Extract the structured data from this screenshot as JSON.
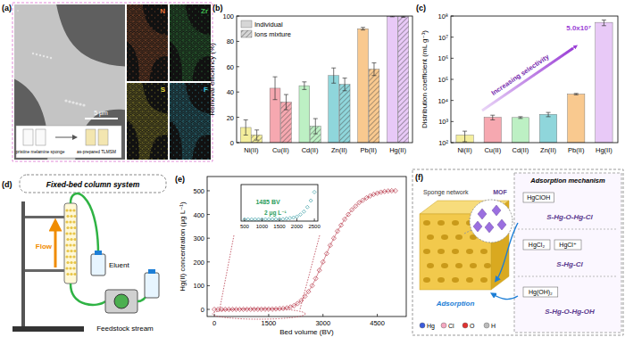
{
  "panel_labels": [
    "(a)",
    "(b)",
    "(c)",
    "(d)",
    "(e)",
    "(f)"
  ],
  "chart_data": [
    {
      "type": "bar",
      "y_label": "Removal efficiency (%)",
      "categories": [
        "Ni(II)",
        "Cu(II)",
        "Cd(II)",
        "Zn(II)",
        "Pb(II)",
        "Hg(II)"
      ],
      "colors": [
        "#f4ee9c",
        "#f6a8b0",
        "#bdf0c4",
        "#8fd6db",
        "#f9c98f",
        "#e8c9f7"
      ],
      "series": [
        {
          "name": "Individual",
          "values": [
            12,
            43,
            45,
            53,
            90,
            99.8
          ],
          "errors": [
            6,
            9,
            3,
            6,
            1,
            0.4
          ]
        },
        {
          "name": "Ions mixture",
          "values": [
            6,
            32,
            13,
            46,
            58,
            99.5
          ],
          "errors": [
            4,
            6,
            6,
            5,
            5,
            0.5
          ],
          "line_style": "hatched"
        }
      ],
      "ylim": [
        0,
        100
      ],
      "yticks": [
        0,
        20,
        40,
        60,
        80,
        100
      ],
      "legend": "upper left"
    },
    {
      "type": "bar",
      "log": "y",
      "y_label": "Distribution coefficient (mL g⁻¹)",
      "categories": [
        "Ni(II)",
        "Cu(II)",
        "Cd(II)",
        "Zn(II)",
        "Pb(II)",
        "Hg(II)"
      ],
      "colors": [
        "#f4ee9c",
        "#f6a8b0",
        "#bdf0c4",
        "#8fd6db",
        "#f9c98f",
        "#e8c9f7"
      ],
      "values": [
        230,
        1600,
        1550,
        2200,
        20000,
        50000000
      ],
      "errors": [
        120,
        400,
        150,
        500,
        1500,
        15000000
      ],
      "ylim": [
        100,
        100000000
      ],
      "yticks": [
        {
          "value": 100,
          "label": "10²"
        },
        {
          "value": 1000,
          "label": "10³"
        },
        {
          "value": 10000,
          "label": "10⁴"
        },
        {
          "value": 100000,
          "label": "10⁵"
        },
        {
          "value": 1000000,
          "label": "10⁶"
        },
        {
          "value": 10000000,
          "label": "10⁷"
        },
        {
          "value": 100000000,
          "label": "10⁸"
        }
      ],
      "annotations": [
        "5.0x10⁷",
        "Increasing selectivity"
      ]
    },
    {
      "type": "line",
      "marker": "diamond",
      "line_style": "solid",
      "color": "#b83a4b",
      "x_label": "Bed volume (BV)",
      "y_label": "Hg(II) concentration (μg L⁻¹)",
      "x": [
        0,
        100,
        200,
        300,
        400,
        500,
        600,
        700,
        800,
        900,
        1000,
        1100,
        1200,
        1300,
        1400,
        1500,
        1600,
        1700,
        1800,
        1900,
        2000,
        2100,
        2200,
        2300,
        2400,
        2500,
        2600,
        2700,
        2800,
        2900,
        3000,
        3100,
        3200,
        3300,
        3400,
        3500,
        3600,
        3700,
        3800,
        3900,
        4000,
        4100,
        4200,
        4300,
        4400,
        4500,
        4600,
        4700,
        4800,
        4900,
        5000
      ],
      "values": [
        0,
        0,
        0,
        0,
        0,
        0.3,
        0.3,
        0.4,
        0.5,
        0.5,
        0.5,
        0.6,
        0.6,
        0.7,
        0.8,
        1,
        1,
        2,
        3,
        4,
        6,
        10,
        16,
        25,
        38,
        55,
        75,
        100,
        130,
        165,
        200,
        235,
        270,
        300,
        330,
        355,
        380,
        400,
        420,
        435,
        450,
        460,
        470,
        478,
        485,
        490,
        494,
        497,
        499,
        500,
        500
      ],
      "xlim": [
        -200,
        5300
      ],
      "xticks": [
        0,
        1500,
        3000,
        4500
      ],
      "ylim": [
        -30,
        560
      ],
      "yticks": [
        0,
        100,
        200,
        300,
        400,
        500
      ]
    },
    {
      "type": "line",
      "marker": "diamond",
      "color": "#3a9ea5",
      "tick_labels": "x",
      "x": [
        500,
        600,
        700,
        800,
        900,
        1000,
        1100,
        1200,
        1300,
        1400,
        1500,
        1600,
        1700,
        1800,
        1900,
        2000,
        2100,
        2200,
        2300,
        2400,
        2500
      ],
      "values": [
        0.3,
        0.3,
        0.4,
        0.5,
        0.5,
        0.5,
        0.6,
        0.6,
        0.7,
        0.8,
        1,
        1,
        2,
        3,
        4,
        6,
        10,
        16,
        25,
        38,
        55
      ],
      "xlim": [
        400,
        2600
      ],
      "xticks": [
        500,
        1000,
        1500,
        2000,
        2500
      ],
      "ylim": [
        -3,
        70
      ],
      "annotations": [
        "1485 BV",
        "2 μg L⁻¹"
      ]
    }
  ],
  "panels": {
    "a": {
      "maps": [
        "N",
        "Zr",
        "S",
        "F"
      ],
      "scale_bar": "5 μm",
      "inset": [
        "pristine melamine sponge",
        "as-prepared TLMSM"
      ]
    },
    "d": {
      "title": "Fixed-bed column system",
      "labels": [
        "Eluent",
        "Flow",
        "Feedstock stream"
      ]
    },
    "f": {
      "title": "Adsorption mechanism",
      "labels": [
        "Sponge network",
        "MOF",
        "Adsorption"
      ],
      "species": [
        {
          "names": [
            "HgClOH"
          ],
          "formula": "S-Hg-O-Hg-Cl"
        },
        {
          "names": [
            "HgCl₂",
            "HgCl⁺"
          ],
          "formula": "S-Hg-Cl"
        },
        {
          "names": [
            "Hg(OH)₂"
          ],
          "formula": "S-Hg-O-Hg-OH"
        }
      ],
      "legend": [
        "Hg",
        "Cl",
        "O",
        "H"
      ]
    }
  }
}
